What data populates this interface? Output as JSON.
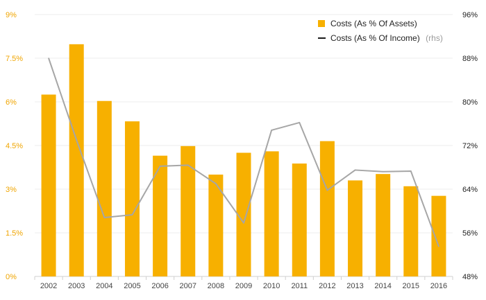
{
  "chart_data": {
    "type": "bar+line",
    "categories": [
      "2002",
      "2003",
      "2004",
      "2005",
      "2006",
      "2007",
      "2008",
      "2009",
      "2010",
      "2011",
      "2012",
      "2013",
      "2014",
      "2015",
      "2016"
    ],
    "series": [
      {
        "name": "Costs (As % Of Assets)",
        "type": "bar",
        "axis": "left",
        "color": "#f7b000",
        "values": [
          6.25,
          7.98,
          6.03,
          5.33,
          4.15,
          4.48,
          3.5,
          4.25,
          4.3,
          3.88,
          4.65,
          3.3,
          3.52,
          3.1,
          2.77
        ]
      },
      {
        "name": "Costs (As % Of Income)",
        "type": "line",
        "axis": "right",
        "color": "#a6a6a6",
        "values": [
          88.0,
          73.0,
          58.8,
          59.3,
          68.2,
          68.4,
          65.0,
          57.8,
          74.8,
          76.2,
          63.8,
          67.5,
          67.2,
          67.3,
          53.5
        ]
      }
    ],
    "left_axis": {
      "ylim": [
        0,
        9
      ],
      "ticks": [
        "0%",
        "1.5%",
        "3%",
        "4.5%",
        "6%",
        "7.5%",
        "9%"
      ],
      "tick_values": [
        0,
        1.5,
        3,
        4.5,
        6,
        7.5,
        9
      ],
      "color": "#f0a500"
    },
    "right_axis": {
      "ylim": [
        48,
        96
      ],
      "ticks": [
        "48%",
        "56%",
        "64%",
        "72%",
        "80%",
        "88%",
        "96%"
      ],
      "tick_values": [
        48,
        56,
        64,
        72,
        80,
        88,
        96
      ],
      "color": "#222222"
    },
    "legend": {
      "position": "top-right",
      "bar_label": "Costs (As % Of Assets)",
      "line_label": "Costs (As % Of Income)",
      "line_suffix": "(rhs)",
      "line_swatch_color": "#1a1a1a"
    },
    "grid": true,
    "title": "",
    "xlabel": "",
    "ylabel": ""
  }
}
